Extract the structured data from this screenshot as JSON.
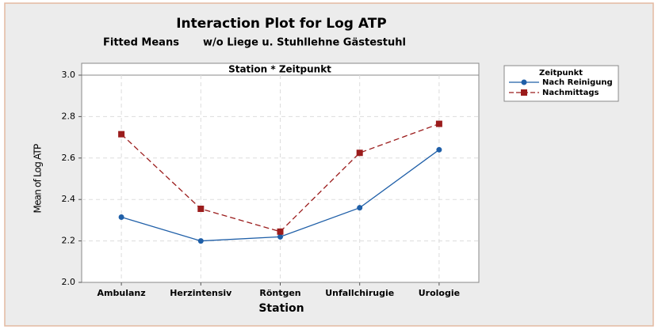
{
  "chart_data": {
    "type": "line",
    "title": "Interaction Plot for Log ATP",
    "subtitle": [
      "Fitted Means",
      "w/o Liege u. Stuhllehne Gästestuhl"
    ],
    "panel_label": "Station * Zeitpunkt",
    "x_label": "Station",
    "y_label": "Mean of Log ATP",
    "categories": [
      "Ambulanz",
      "Herzintensiv",
      "Röntgen",
      "Unfallchirugie",
      "Urologie"
    ],
    "legend_title": "Zeitpunkt",
    "legend": "right",
    "series": [
      {
        "name": "Nach Reinigung",
        "color": "#1f5fa8",
        "line_style": "solid",
        "marker": "circle",
        "values": [
          2.315,
          2.2,
          2.22,
          2.36,
          2.64
        ]
      },
      {
        "name": "Nachmittags",
        "color": "#9b1c1c",
        "line_style": "dashed",
        "marker": "square",
        "values": [
          2.715,
          2.355,
          2.245,
          2.625,
          2.765
        ]
      }
    ],
    "ylim": [
      2.0,
      3.0
    ],
    "yticks": [
      {
        "value": 2.0,
        "label": "2.0"
      },
      2.2,
      2.4,
      2.6,
      2.8,
      {
        "value": 3.0,
        "label": "3.0"
      }
    ],
    "grid": true
  }
}
